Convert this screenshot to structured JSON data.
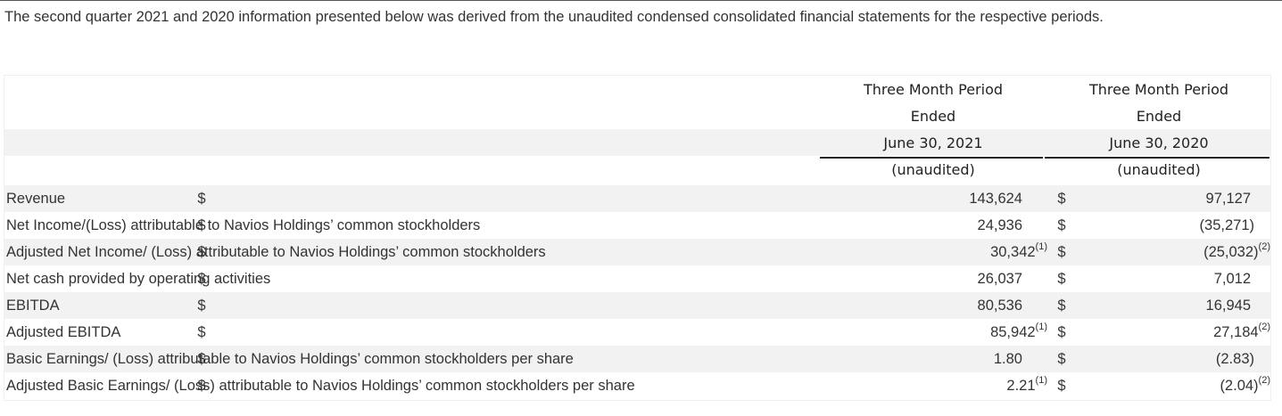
{
  "intro": "The second quarter 2021 and 2020 information presented below was derived from the unaudited condensed consolidated financial statements for the respective periods.",
  "columns": [
    {
      "lines": [
        "Three Month Period",
        "Ended",
        "June 30, 2021",
        "(unaudited)"
      ]
    },
    {
      "lines": [
        "Three Month Period",
        "Ended",
        "June 30, 2020",
        "(unaudited)"
      ]
    }
  ],
  "rows": [
    {
      "label": "Revenue",
      "cur1": "$",
      "v1": "143,624",
      "n1": "",
      "cur2": "$",
      "v2": "97,127",
      "n2": ""
    },
    {
      "label": "Net Income/(Loss) attributable to Navios Holdings’ common stockholders",
      "cur1": "$",
      "v1": "24,936",
      "n1": "",
      "cur2": "$",
      "v2": "(35,271)",
      "n2": ""
    },
    {
      "label": "Adjusted Net Income/ (Loss) attributable to Navios Holdings’ common stockholders",
      "cur1": "$",
      "v1": "30,342",
      "n1": "(1)",
      "cur2": "$",
      "v2": "(25,032)",
      "n2": "(2)"
    },
    {
      "label": "Net cash provided by operating activities",
      "cur1": "$",
      "v1": "26,037",
      "n1": "",
      "cur2": "$",
      "v2": "7,012",
      "n2": ""
    },
    {
      "label": "EBITDA",
      "cur1": "$",
      "v1": "80,536",
      "n1": "",
      "cur2": "$",
      "v2": "16,945",
      "n2": ""
    },
    {
      "label": "Adjusted EBITDA",
      "cur1": "$",
      "v1": "85,942",
      "n1": "(1)",
      "cur2": "$",
      "v2": "27,184",
      "n2": "(2)"
    },
    {
      "label": "Basic Earnings/ (Loss) attributable to Navios Holdings’ common stockholders per share",
      "cur1": "$",
      "v1": "1.80",
      "n1": "",
      "cur2": "$",
      "v2": "(2.83)",
      "n2": ""
    },
    {
      "label": "Adjusted Basic Earnings/ (Loss) attributable to Navios Holdings’ common stockholders per share",
      "cur1": "$",
      "v1": "2.21",
      "n1": "(1)",
      "cur2": "$",
      "v2": "(2.04)",
      "n2": "(2)"
    }
  ]
}
